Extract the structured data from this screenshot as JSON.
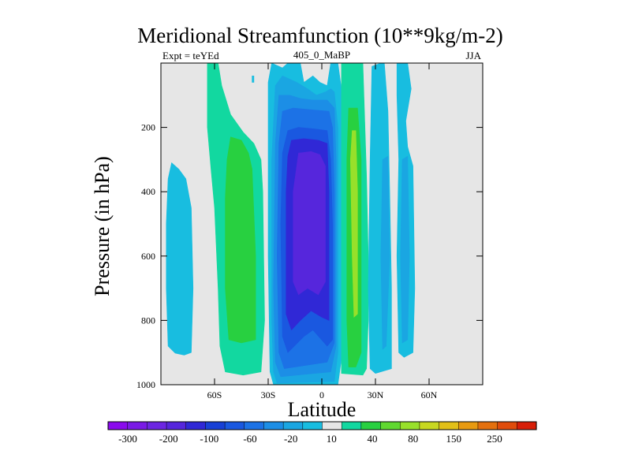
{
  "chart_data": {
    "type": "heatmap",
    "title": "Meridional Streamfunction (10**9kg/m-2)",
    "subtitle_left": "Expt = teYEd",
    "subtitle_center": "405_0_MaBP",
    "subtitle_right": "JJA",
    "xlabel": "Latitude",
    "ylabel": "Pressure (in hPa)",
    "x_range": [
      -90,
      90
    ],
    "y_range": [
      0,
      1000
    ],
    "x_ticks": [
      {
        "value": -60,
        "label": "60S"
      },
      {
        "value": -30,
        "label": "30S"
      },
      {
        "value": 0,
        "label": "0"
      },
      {
        "value": 30,
        "label": "30N"
      },
      {
        "value": 60,
        "label": "60N"
      }
    ],
    "y_ticks": [
      {
        "value": 200,
        "label": "200"
      },
      {
        "value": 400,
        "label": "400"
      },
      {
        "value": 600,
        "label": "600"
      },
      {
        "value": 800,
        "label": "800"
      },
      {
        "value": 1000,
        "label": "1000"
      }
    ],
    "background_color": "#e6e6e6",
    "colorbar": {
      "colors": [
        "#8a0aed",
        "#7a1ae6",
        "#6c26e2",
        "#5626dc",
        "#3028d6",
        "#1840d6",
        "#1a58e0",
        "#1c72e6",
        "#1c8ee6",
        "#1aa6e2",
        "#18bde0",
        "#e6e6e6",
        "#12d8a0",
        "#28d040",
        "#60d830",
        "#98e02a",
        "#c8d820",
        "#e2c018",
        "#e89a10",
        "#e4700e",
        "#e04c0c",
        "#d81e08"
      ],
      "labels": [
        "-300",
        "-200",
        "-100",
        "-60",
        "-20",
        "10",
        "40",
        "80",
        "150",
        "250"
      ]
    },
    "regions": [
      {
        "name": "sh-polar-cell",
        "color": "#18bde0",
        "polygon": [
          [
            -84,
            310
          ],
          [
            -80,
            330
          ],
          [
            -76,
            360
          ],
          [
            -73,
            450
          ],
          [
            -72,
            700
          ],
          [
            -73,
            900
          ],
          [
            -77,
            908
          ],
          [
            -82,
            902
          ],
          [
            -86,
            880
          ],
          [
            -87,
            700
          ],
          [
            -87,
            500
          ],
          [
            -86,
            360
          ]
        ]
      },
      {
        "name": "sh-mid-cell-outer",
        "color": "#12d8a0",
        "polygon": [
          [
            -64,
            0
          ],
          [
            -58,
            0
          ],
          [
            -56,
            70
          ],
          [
            -51,
            160
          ],
          [
            -44,
            215
          ],
          [
            -38,
            250
          ],
          [
            -34,
            300
          ],
          [
            -33,
            400
          ],
          [
            -32,
            800
          ],
          [
            -34,
            960
          ],
          [
            -44,
            970
          ],
          [
            -54,
            960
          ],
          [
            -57,
            880
          ],
          [
            -58,
            700
          ],
          [
            -60,
            450
          ],
          [
            -62,
            330
          ],
          [
            -64,
            200
          ],
          [
            -64,
            80
          ]
        ]
      },
      {
        "name": "sh-mid-cell-inner",
        "color": "#28d040",
        "polygon": [
          [
            -51,
            230
          ],
          [
            -45,
            240
          ],
          [
            -41,
            280
          ],
          [
            -39,
            330
          ],
          [
            -37,
            600
          ],
          [
            -37,
            860
          ],
          [
            -45,
            870
          ],
          [
            -52,
            860
          ],
          [
            -54,
            700
          ],
          [
            -54,
            420
          ],
          [
            -53,
            300
          ]
        ]
      },
      {
        "name": "sh-hadley-20",
        "color": "#18bde0",
        "polygon": [
          [
            -28,
            0
          ],
          [
            -22,
            15
          ],
          [
            -19,
            0
          ],
          [
            -12,
            0
          ],
          [
            -10,
            60
          ],
          [
            -5,
            40
          ],
          [
            -1,
            60
          ],
          [
            3,
            70
          ],
          [
            5,
            0
          ],
          [
            9,
            0
          ],
          [
            11,
            80
          ],
          [
            11,
            920
          ],
          [
            9,
            1000
          ],
          [
            -27,
            1000
          ],
          [
            -29,
            960
          ],
          [
            -30,
            600
          ],
          [
            -30,
            200
          ],
          [
            -30,
            60
          ]
        ]
      },
      {
        "name": "sh-hadley-40",
        "color": "#1aa6e2",
        "polygon": [
          [
            -26,
            70
          ],
          [
            -22,
            40
          ],
          [
            -18,
            50
          ],
          [
            -14,
            60
          ],
          [
            -8,
            80
          ],
          [
            -3,
            100
          ],
          [
            2,
            90
          ],
          [
            5,
            80
          ],
          [
            7,
            90
          ],
          [
            9,
            200
          ],
          [
            9,
            900
          ],
          [
            7,
            990
          ],
          [
            -25,
            995
          ],
          [
            -27,
            960
          ],
          [
            -28,
            800
          ],
          [
            -28,
            300
          ]
        ]
      },
      {
        "name": "sh-hadley-60",
        "color": "#1c8ee6",
        "polygon": [
          [
            -24,
            100
          ],
          [
            -18,
            100
          ],
          [
            -12,
            110
          ],
          [
            -5,
            115
          ],
          [
            3,
            115
          ],
          [
            7,
            140
          ],
          [
            8,
            300
          ],
          [
            8,
            880
          ],
          [
            5,
            960
          ],
          [
            -23,
            975
          ],
          [
            -26,
            930
          ],
          [
            -27,
            700
          ],
          [
            -26,
            250
          ]
        ]
      },
      {
        "name": "sh-hadley-80",
        "color": "#1c72e6",
        "polygon": [
          [
            -22,
            150
          ],
          [
            -16,
            140
          ],
          [
            -6,
            145
          ],
          [
            4,
            150
          ],
          [
            6,
            200
          ],
          [
            7,
            400
          ],
          [
            7,
            870
          ],
          [
            3,
            930
          ],
          [
            -21,
            950
          ],
          [
            -24,
            900
          ],
          [
            -25,
            600
          ],
          [
            -24,
            250
          ]
        ]
      },
      {
        "name": "sh-hadley-100",
        "color": "#1a58e0",
        "polygon": [
          [
            -19,
            210
          ],
          [
            -13,
            200
          ],
          [
            -4,
            205
          ],
          [
            3,
            210
          ],
          [
            5,
            300
          ],
          [
            6,
            500
          ],
          [
            6,
            860
          ],
          [
            3,
            880
          ],
          [
            -5,
            830
          ],
          [
            -10,
            850
          ],
          [
            -19,
            900
          ],
          [
            -22,
            850
          ],
          [
            -23,
            500
          ],
          [
            -22,
            280
          ]
        ]
      },
      {
        "name": "sh-hadley-150",
        "color": "#3028d6",
        "polygon": [
          [
            -17,
            240
          ],
          [
            -10,
            235
          ],
          [
            -2,
            240
          ],
          [
            3,
            250
          ],
          [
            4,
            400
          ],
          [
            4,
            800
          ],
          [
            0,
            790
          ],
          [
            -6,
            770
          ],
          [
            -12,
            800
          ],
          [
            -17,
            830
          ],
          [
            -20,
            780
          ],
          [
            -20,
            400
          ],
          [
            -19,
            290
          ]
        ]
      },
      {
        "name": "sh-hadley-200",
        "color": "#5626dc",
        "polygon": [
          [
            -13,
            280
          ],
          [
            -6,
            275
          ],
          [
            -1,
            285
          ],
          [
            2,
            320
          ],
          [
            2,
            680
          ],
          [
            -2,
            720
          ],
          [
            -8,
            700
          ],
          [
            -13,
            720
          ],
          [
            -16,
            680
          ],
          [
            -16,
            400
          ]
        ]
      },
      {
        "name": "nh-hadley-outer",
        "color": "#12d8a0",
        "polygon": [
          [
            11,
            0
          ],
          [
            23,
            0
          ],
          [
            25,
            350
          ],
          [
            26,
            600
          ],
          [
            26,
            800
          ],
          [
            25,
            950
          ],
          [
            23,
            970
          ],
          [
            11,
            965
          ],
          [
            11,
            920
          ],
          [
            11,
            700
          ],
          [
            11,
            400
          ],
          [
            11,
            150
          ]
        ]
      },
      {
        "name": "nh-hadley-40",
        "color": "#28d040",
        "polygon": [
          [
            15,
            140
          ],
          [
            20,
            140
          ],
          [
            22,
            300
          ],
          [
            22,
            900
          ],
          [
            19,
            945
          ],
          [
            15,
            945
          ],
          [
            14,
            800
          ],
          [
            14,
            300
          ]
        ]
      },
      {
        "name": "nh-hadley-80",
        "color": "#98e02a",
        "polygon": [
          [
            17,
            210
          ],
          [
            19,
            210
          ],
          [
            20,
            400
          ],
          [
            20,
            780
          ],
          [
            18,
            790
          ],
          [
            17,
            600
          ],
          [
            16,
            300
          ]
        ]
      },
      {
        "name": "nh-ferrel-20",
        "color": "#18bde0",
        "polygon": [
          [
            28,
            10
          ],
          [
            33,
            0
          ],
          [
            35,
            0
          ],
          [
            37,
            150
          ],
          [
            38,
            400
          ],
          [
            39,
            700
          ],
          [
            39,
            950
          ],
          [
            30,
            965
          ],
          [
            27,
            950
          ],
          [
            26,
            700
          ],
          [
            27,
            300
          ]
        ]
      },
      {
        "name": "nh-ferrel-20b",
        "color": "#18bde0",
        "polygon": [
          [
            42,
            0
          ],
          [
            48,
            0
          ],
          [
            50,
            80
          ],
          [
            47,
            180
          ],
          [
            48,
            260
          ],
          [
            51,
            320
          ],
          [
            52,
            700
          ],
          [
            51,
            900
          ],
          [
            46,
            915
          ],
          [
            43,
            900
          ],
          [
            42,
            600
          ],
          [
            43,
            300
          ],
          [
            42,
            100
          ]
        ]
      },
      {
        "name": "nh-ferrel-10",
        "color": "#1aa6e2",
        "polygon": [
          [
            34,
            300
          ],
          [
            37,
            290
          ],
          [
            38,
            600
          ],
          [
            36,
            880
          ],
          [
            34,
            890
          ],
          [
            33,
            600
          ]
        ]
      },
      {
        "name": "nh-ferrel-10b",
        "color": "#1aa6e2",
        "polygon": [
          [
            45,
            300
          ],
          [
            48,
            290
          ],
          [
            49,
            600
          ],
          [
            48,
            860
          ],
          [
            45,
            870
          ],
          [
            44,
            600
          ]
        ]
      },
      {
        "name": "dot-south",
        "color": "#18bde0",
        "polygon": [
          [
            -39,
            40
          ],
          [
            -38,
            40
          ],
          [
            -38,
            60
          ],
          [
            -39,
            60
          ]
        ]
      }
    ]
  }
}
